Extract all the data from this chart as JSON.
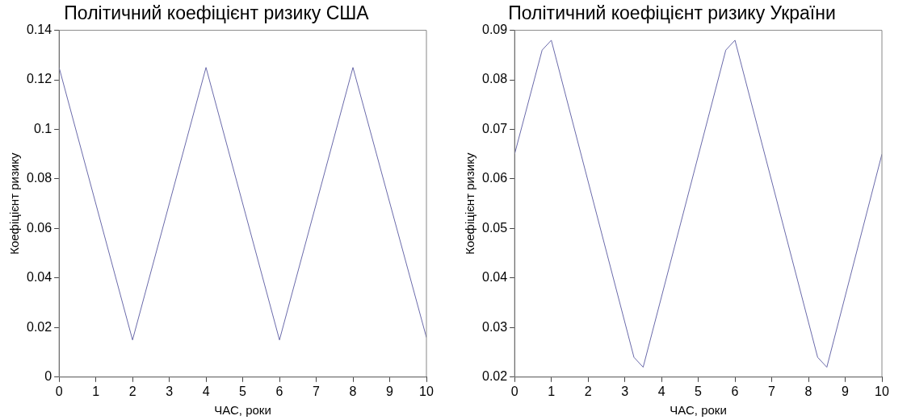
{
  "chart_data": [
    {
      "type": "line",
      "title": "Політичний коефіцієнт ризику США",
      "xlabel": "ЧАС, роки",
      "ylabel": "Коефіцієнт ризику",
      "xlim": [
        0,
        10
      ],
      "xticks": [
        0,
        1,
        2,
        3,
        4,
        5,
        6,
        7,
        8,
        9,
        10
      ],
      "ylim": [
        0,
        0.14
      ],
      "yticks": [
        0,
        0.02,
        0.04,
        0.06,
        0.08,
        0.1,
        0.12,
        0.14
      ],
      "grid": false,
      "legend": false,
      "marker": "none",
      "line_style": "solid",
      "series": [
        {
          "color": "#6a6aaa",
          "x": [
            0,
            2,
            4,
            6,
            8,
            10
          ],
          "values": [
            0.125,
            0.015,
            0.125,
            0.015,
            0.125,
            0.016
          ]
        }
      ]
    },
    {
      "type": "line",
      "title": "Політичний коефіцієнт ризику України",
      "xlabel": "ЧАС, роки",
      "ylabel": "Коефіцієнт ризику",
      "xlim": [
        0,
        10
      ],
      "xticks": [
        0,
        1,
        2,
        3,
        4,
        5,
        6,
        7,
        8,
        9,
        10
      ],
      "ylim": [
        0.02,
        0.09
      ],
      "yticks": [
        0.02,
        0.03,
        0.04,
        0.05,
        0.06,
        0.07,
        0.08,
        0.09
      ],
      "grid": false,
      "legend": false,
      "marker": "none",
      "line_style": "solid",
      "series": [
        {
          "color": "#6a6aaa",
          "x": [
            0,
            0.75,
            1,
            3.25,
            3.5,
            5.75,
            6,
            8.25,
            8.5,
            10
          ],
          "values": [
            0.065,
            0.086,
            0.088,
            0.024,
            0.022,
            0.086,
            0.088,
            0.024,
            0.022,
            0.065
          ]
        }
      ]
    }
  ]
}
